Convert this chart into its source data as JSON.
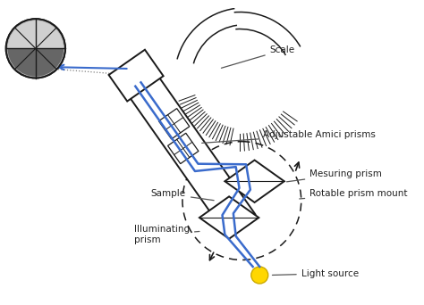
{
  "bg_color": "#ffffff",
  "line_color": "#1a1a1a",
  "blue_color": "#3a6bcc",
  "label_color": "#222222",
  "gray_color": "#888888",
  "labels": {
    "scale": "Scale",
    "amici": "Adjustable Amici prisms",
    "measuring": "Mesuring prism",
    "rotable": "Rotable prism mount",
    "sample": "Sample",
    "illuminating": "Illuminating\nprism",
    "light": "Light source"
  },
  "figsize": [
    4.74,
    3.42
  ],
  "dpi": 100
}
